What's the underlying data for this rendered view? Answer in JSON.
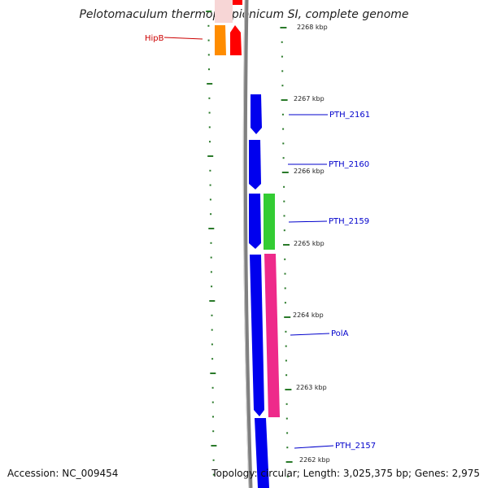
{
  "title": "Pelotomaculum thermopropionicum SI, complete genome",
  "footer": {
    "accession": "Accession: NC_009454",
    "topology": "Topology: circular; Length: 3,025,375 bp; Genes: 2,975"
  },
  "ticks": [
    {
      "label": "2268 kbp"
    },
    {
      "label": "2267 kbp"
    },
    {
      "label": "2266 kbp"
    },
    {
      "label": "2265 kbp"
    },
    {
      "label": "2264 kbp"
    },
    {
      "label": "2263 kbp"
    },
    {
      "label": "2262 kbp"
    }
  ],
  "genes": [
    {
      "name": "HipB",
      "color": "#cc0000"
    },
    {
      "name": "PTH_2161",
      "color": "#0000cc"
    },
    {
      "name": "PTH_2160",
      "color": "#0000cc"
    },
    {
      "name": "PTH_2159",
      "color": "#0000cc"
    },
    {
      "name": "PolA",
      "color": "#0000cc"
    },
    {
      "name": "PTH_2157",
      "color": "#0000cc"
    }
  ],
  "colors": {
    "backbone": "#808080",
    "tick": "#2a7a2a",
    "orange": "#ff8c00",
    "red": "#ff0000",
    "blue": "#0000ee",
    "green": "#33cc33",
    "pink": "#ee2a8a"
  }
}
